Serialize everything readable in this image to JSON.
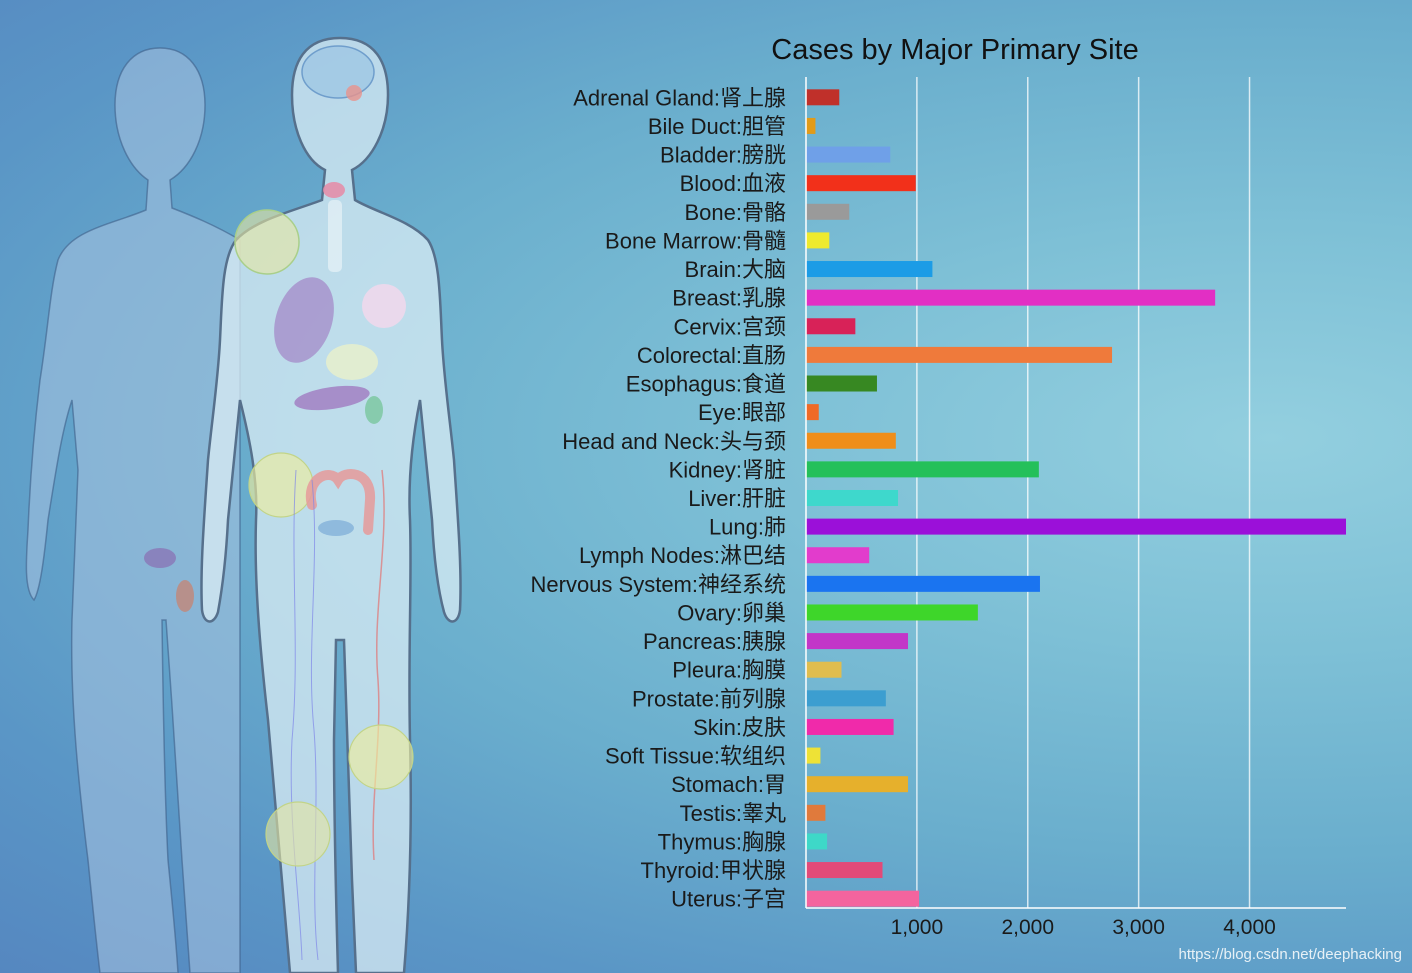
{
  "watermark": "https://blog.csdn.net/deephacking",
  "chart_data": {
    "type": "bar",
    "orientation": "horizontal",
    "title": "Cases by Major Primary Site",
    "xlabel": "",
    "ylabel": "",
    "xlim": [
      0,
      4870
    ],
    "x_ticks": [
      {
        "value": 1000,
        "label": "1,000"
      },
      {
        "value": 2000,
        "label": "2,000"
      },
      {
        "value": 3000,
        "label": "3,000"
      },
      {
        "value": 4000,
        "label": "4,000"
      }
    ],
    "grid": true,
    "categories": [
      "Adrenal Gland:肾上腺",
      "Bile Duct:胆管",
      "Bladder:膀胱",
      "Blood:血液",
      "Bone:骨骼",
      "Bone Marrow:骨髓",
      "Brain:大脑",
      "Breast:乳腺",
      "Cervix:宫颈",
      "Colorectal:直肠",
      "Esophagus:食道",
      "Eye:眼部",
      "Head and Neck:头与颈",
      "Kidney:肾脏",
      "Liver:肝脏",
      "Lung:肺",
      "Lymph Nodes:淋巴结",
      "Nervous System:神经系统",
      "Ovary:卵巢",
      "Pancreas:胰腺",
      "Pleura:胸膜",
      "Prostate:前列腺",
      "Skin:皮肤",
      "Soft Tissue:软组织",
      "Stomach:胃",
      "Testis:睾丸",
      "Thymus:胸腺",
      "Thyroid:甲状腺",
      "Uterus:子宫"
    ],
    "values": [
      300,
      85,
      760,
      990,
      390,
      210,
      1140,
      3690,
      445,
      2760,
      640,
      115,
      810,
      2100,
      830,
      4870,
      570,
      2110,
      1550,
      920,
      320,
      720,
      790,
      130,
      920,
      175,
      190,
      690,
      1020
    ],
    "colors": [
      "#c0302a",
      "#e29b18",
      "#6fa0e8",
      "#f2301a",
      "#9a9a9a",
      "#eeea2e",
      "#1c9ce6",
      "#e22fc4",
      "#d82258",
      "#ef7a3b",
      "#378822",
      "#ef6a26",
      "#ef8e1a",
      "#24c05a",
      "#3ed8cc",
      "#9b10d9",
      "#e23ccc",
      "#1a74f0",
      "#3ed62a",
      "#c236c8",
      "#e0bd4e",
      "#3c9ed0",
      "#f02aaa",
      "#eee236",
      "#e6b02c",
      "#e07a3c",
      "#3ed8c8",
      "#e24a78",
      "#f4649e"
    ]
  }
}
